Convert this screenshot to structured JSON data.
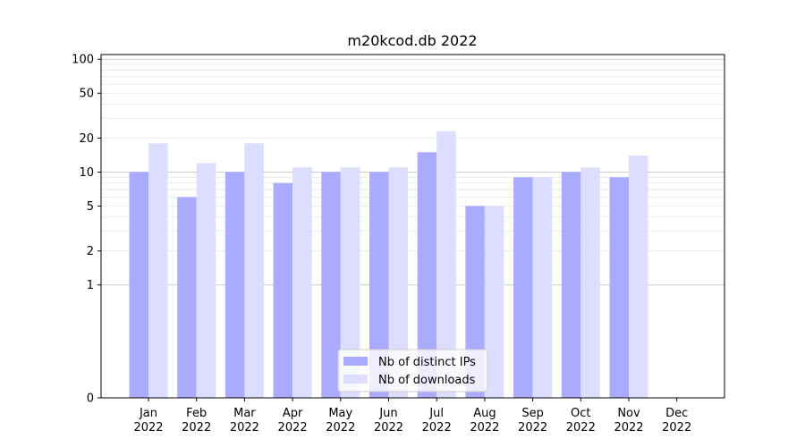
{
  "chart_data": {
    "type": "bar",
    "title": "m20kcod.db 2022",
    "xlabel": "",
    "ylabel": "",
    "y_scale": "symlog",
    "ylim": [
      0,
      110
    ],
    "y_ticks": [
      {
        "value": 0,
        "label": "0"
      },
      {
        "value": 1,
        "label": "1"
      },
      {
        "value": 2,
        "label": "2"
      },
      {
        "value": 5,
        "label": "5"
      },
      {
        "value": 10,
        "label": "10"
      },
      {
        "value": 20,
        "label": "20"
      },
      {
        "value": 50,
        "label": "50"
      },
      {
        "value": 100,
        "label": "100"
      }
    ],
    "categories": [
      {
        "month": "Jan",
        "year": "2022"
      },
      {
        "month": "Feb",
        "year": "2022"
      },
      {
        "month": "Mar",
        "year": "2022"
      },
      {
        "month": "Apr",
        "year": "2022"
      },
      {
        "month": "May",
        "year": "2022"
      },
      {
        "month": "Jun",
        "year": "2022"
      },
      {
        "month": "Jul",
        "year": "2022"
      },
      {
        "month": "Aug",
        "year": "2022"
      },
      {
        "month": "Sep",
        "year": "2022"
      },
      {
        "month": "Oct",
        "year": "2022"
      },
      {
        "month": "Nov",
        "year": "2022"
      },
      {
        "month": "Dec",
        "year": "2022"
      }
    ],
    "series": [
      {
        "name": "Nb of distinct IPs",
        "color": "#aaaaff",
        "values": [
          10,
          6,
          10,
          8,
          10,
          10,
          15,
          5,
          9,
          10,
          9,
          0
        ]
      },
      {
        "name": "Nb of downloads",
        "color": "#ddddff",
        "values": [
          18,
          12,
          18,
          11,
          11,
          11,
          23,
          5,
          9,
          11,
          14,
          0
        ]
      }
    ],
    "grid": true,
    "legend_position": "bottom-center"
  }
}
